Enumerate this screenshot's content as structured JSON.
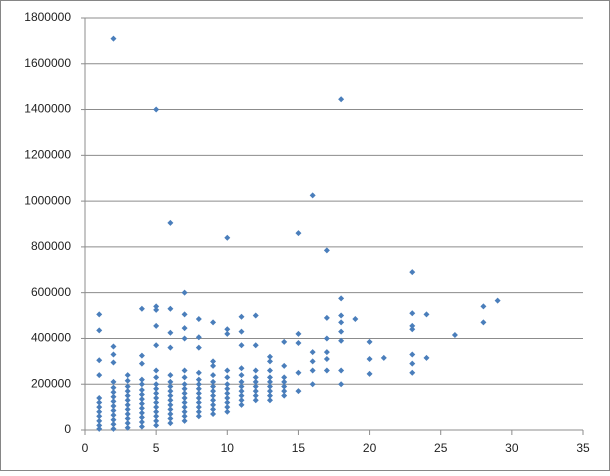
{
  "chart_data": {
    "type": "scatter",
    "color": "#4a7ebb",
    "grid": true,
    "xlim": [
      0,
      35
    ],
    "xticks": [
      0,
      5,
      10,
      15,
      20,
      25,
      30,
      35
    ],
    "ylim": [
      0,
      1800000
    ],
    "yticks": [
      0,
      200000,
      400000,
      600000,
      800000,
      1000000,
      1200000,
      1400000,
      1600000,
      1800000
    ],
    "x": [
      1,
      1,
      1,
      1,
      1,
      1,
      1,
      1,
      2,
      2,
      2,
      2,
      2,
      2,
      2,
      2,
      2,
      2,
      2,
      3,
      3,
      3,
      3,
      3,
      3,
      3,
      3,
      3,
      3,
      3,
      3,
      4,
      4,
      4,
      4,
      4,
      4,
      4,
      4,
      4,
      4,
      4,
      5,
      5,
      5,
      5,
      5,
      5,
      5,
      5,
      5,
      5,
      5,
      5,
      6,
      6,
      6,
      6,
      6,
      6,
      6,
      6,
      6,
      6,
      6,
      7,
      7,
      7,
      7,
      7,
      7,
      7,
      7,
      7,
      7,
      7,
      8,
      8,
      8,
      8,
      8,
      8,
      8,
      8,
      8,
      8,
      9,
      9,
      9,
      9,
      9,
      9,
      9,
      9,
      9,
      9,
      9,
      10,
      10,
      10,
      10,
      10,
      10,
      10,
      10,
      10,
      11,
      11,
      11,
      11,
      11,
      11,
      11,
      11,
      12,
      12,
      12,
      12,
      12,
      12,
      12,
      13,
      13,
      13,
      13,
      13,
      13,
      13,
      13,
      14,
      14,
      14,
      14,
      14,
      14,
      15,
      16,
      2,
      5,
      18,
      16,
      6,
      10,
      15,
      17,
      23,
      7,
      18,
      28,
      29,
      28,
      26,
      24,
      23,
      23,
      23,
      24,
      23,
      23,
      23,
      21,
      20,
      20,
      20,
      19,
      18,
      18,
      18,
      18,
      18,
      18,
      17,
      17,
      17,
      17,
      17,
      16,
      16,
      16,
      15,
      15,
      15,
      1,
      1,
      1,
      1,
      2,
      2,
      2,
      4,
      4,
      4,
      5,
      5,
      5,
      5,
      6,
      6,
      6,
      7,
      7,
      7,
      8,
      8,
      8,
      9,
      10,
      10,
      11,
      11,
      11,
      12,
      12,
      13,
      14
    ],
    "values": [
      5000,
      20000,
      40000,
      60000,
      80000,
      100000,
      120000,
      140000,
      5000,
      25000,
      45000,
      65000,
      85000,
      105000,
      125000,
      145000,
      165000,
      185000,
      210000,
      10000,
      30000,
      50000,
      70000,
      90000,
      110000,
      130000,
      150000,
      170000,
      190000,
      215000,
      240000,
      15000,
      35000,
      55000,
      75000,
      95000,
      115000,
      135000,
      155000,
      175000,
      200000,
      220000,
      20000,
      40000,
      60000,
      80000,
      100000,
      120000,
      140000,
      160000,
      180000,
      200000,
      230000,
      260000,
      30000,
      50000,
      70000,
      90000,
      110000,
      130000,
      150000,
      170000,
      190000,
      210000,
      240000,
      40000,
      60000,
      80000,
      100000,
      120000,
      140000,
      160000,
      180000,
      200000,
      230000,
      260000,
      60000,
      80000,
      100000,
      120000,
      140000,
      160000,
      180000,
      200000,
      220000,
      250000,
      70000,
      90000,
      110000,
      130000,
      150000,
      170000,
      190000,
      210000,
      240000,
      280000,
      300000,
      80000,
      100000,
      120000,
      140000,
      160000,
      180000,
      200000,
      230000,
      260000,
      110000,
      130000,
      150000,
      170000,
      190000,
      210000,
      240000,
      270000,
      130000,
      150000,
      170000,
      190000,
      210000,
      230000,
      260000,
      130000,
      150000,
      170000,
      190000,
      210000,
      230000,
      260000,
      300000,
      150000,
      170000,
      190000,
      210000,
      230000,
      280000,
      170000,
      200000,
      1710000,
      1400000,
      1445000,
      1025000,
      905000,
      840000,
      860000,
      785000,
      690000,
      600000,
      575000,
      540000,
      565000,
      470000,
      415000,
      505000,
      510000,
      455000,
      440000,
      315000,
      330000,
      290000,
      250000,
      315000,
      385000,
      310000,
      245000,
      485000,
      500000,
      470000,
      430000,
      390000,
      260000,
      200000,
      490000,
      400000,
      340000,
      310000,
      260000,
      340000,
      300000,
      260000,
      420000,
      380000,
      250000,
      505000,
      435000,
      305000,
      240000,
      365000,
      330000,
      295000,
      530000,
      325000,
      290000,
      540000,
      525000,
      455000,
      370000,
      530000,
      425000,
      360000,
      505000,
      445000,
      400000,
      485000,
      405000,
      360000,
      470000,
      440000,
      420000,
      495000,
      430000,
      370000,
      500000,
      370000,
      320000,
      385000
    ]
  }
}
